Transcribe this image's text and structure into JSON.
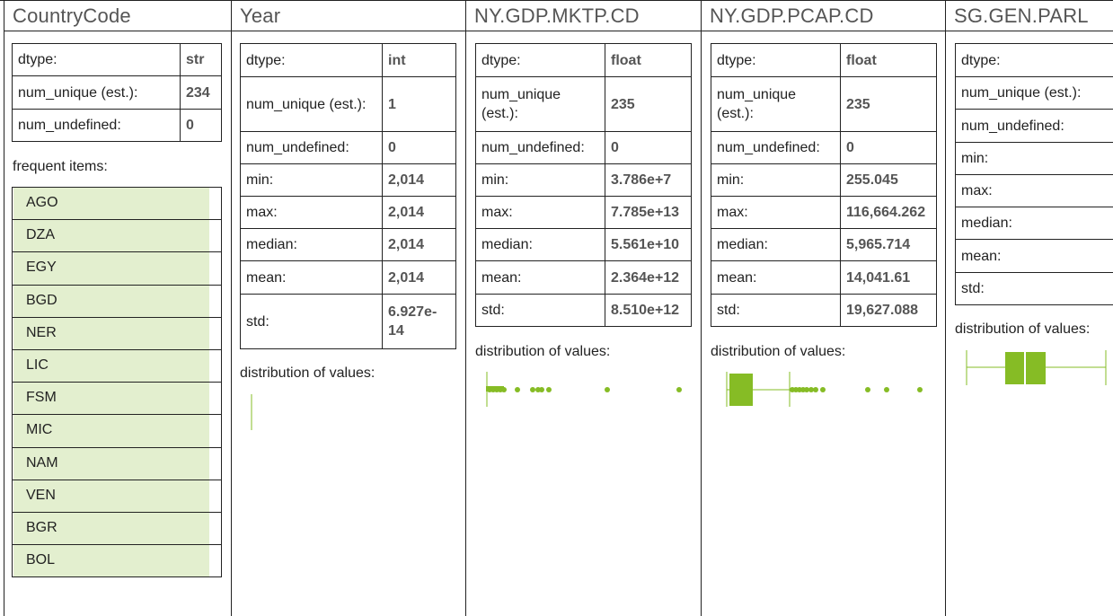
{
  "accent_color": "#86bc25",
  "columns": [
    {
      "name": "CountryCode",
      "stats": [
        {
          "key": "dtype:",
          "value": "str"
        },
        {
          "key": "num_unique (est.):",
          "value": "234"
        },
        {
          "key": "num_undefined:",
          "value": "0"
        }
      ],
      "frequent_label": "frequent items:",
      "frequent_items": [
        {
          "label": "AGO",
          "share": 1.0
        },
        {
          "label": "DZA",
          "share": 1.0
        },
        {
          "label": "EGY",
          "share": 1.0
        },
        {
          "label": "BGD",
          "share": 1.0
        },
        {
          "label": "NER",
          "share": 1.0
        },
        {
          "label": "LIC",
          "share": 1.0
        },
        {
          "label": "FSM",
          "share": 1.0
        },
        {
          "label": "MIC",
          "share": 1.0
        },
        {
          "label": "NAM",
          "share": 1.0
        },
        {
          "label": "VEN",
          "share": 1.0
        },
        {
          "label": "BGR",
          "share": 1.0
        },
        {
          "label": "BOL",
          "share": 1.0
        }
      ]
    },
    {
      "name": "Year",
      "stats": [
        {
          "key": "dtype:",
          "value": "int"
        },
        {
          "key": "num_unique (est.):",
          "value": "1"
        },
        {
          "key": "num_undefined:",
          "value": "0"
        },
        {
          "key": "min:",
          "value": "2,014"
        },
        {
          "key": "max:",
          "value": "2,014"
        },
        {
          "key": "median:",
          "value": "2,014"
        },
        {
          "key": "mean:",
          "value": "2,014"
        },
        {
          "key": "std:",
          "value": "6.927e-14"
        }
      ],
      "dist_label": "distribution of values:"
    },
    {
      "name": "NY.GDP.MKTP.CD",
      "stats": [
        {
          "key": "dtype:",
          "value": "float"
        },
        {
          "key": "num_unique (est.):",
          "value": "235"
        },
        {
          "key": "num_undefined:",
          "value": "0"
        },
        {
          "key": "min:",
          "value": "3.786e+7"
        },
        {
          "key": "max:",
          "value": "7.785e+13"
        },
        {
          "key": "median:",
          "value": "5.561e+10"
        },
        {
          "key": "mean:",
          "value": "2.364e+12"
        },
        {
          "key": "std:",
          "value": "8.510e+12"
        }
      ],
      "dist_label": "distribution of values:"
    },
    {
      "name": "NY.GDP.PCAP.CD",
      "stats": [
        {
          "key": "dtype:",
          "value": "float"
        },
        {
          "key": "num_unique (est.):",
          "value": "235"
        },
        {
          "key": "num_undefined:",
          "value": "0"
        },
        {
          "key": "min:",
          "value": "255.045"
        },
        {
          "key": "max:",
          "value": "116,664.262"
        },
        {
          "key": "median:",
          "value": "5,965.714"
        },
        {
          "key": "mean:",
          "value": "14,041.61"
        },
        {
          "key": "std:",
          "value": "19,627.088"
        }
      ],
      "dist_label": "distribution of values:"
    },
    {
      "name": "SG.GEN.PARL",
      "stats": [
        {
          "key": "dtype:",
          "value": ""
        },
        {
          "key": "num_unique (est.):",
          "value": ""
        },
        {
          "key": "num_undefined:",
          "value": ""
        },
        {
          "key": "min:",
          "value": ""
        },
        {
          "key": "max:",
          "value": ""
        },
        {
          "key": "median:",
          "value": ""
        },
        {
          "key": "mean:",
          "value": ""
        },
        {
          "key": "std:",
          "value": ""
        }
      ],
      "dist_label": "distribution of values:"
    }
  ]
}
